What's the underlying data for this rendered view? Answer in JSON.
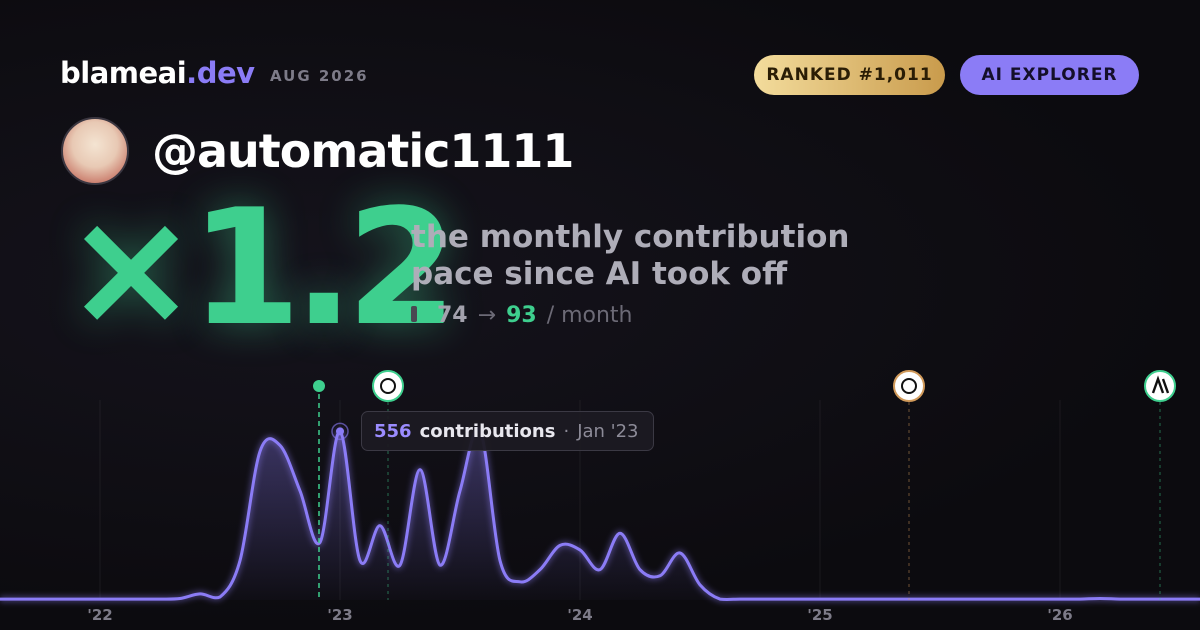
{
  "brand": {
    "name": "blameai",
    "tld": ".dev"
  },
  "date": "AUG 2026",
  "badges": [
    "RANKED #1,011",
    "AI EXPLORER"
  ],
  "handle": "@automatic1111",
  "pace": {
    "multiplier": "×1.2",
    "description": [
      "the monthly contribution",
      "pace since AI took off"
    ],
    "before": 74,
    "arrow": "→",
    "after": 93,
    "unit": "/ month"
  },
  "tooltip": {
    "label": "contributions",
    "separator": "·",
    "date": "Jan '23"
  },
  "chart_data": {
    "type": "area",
    "categories": [
      null,
      null,
      null,
      null,
      null,
      "'22",
      null,
      null,
      null,
      null,
      null,
      null,
      null,
      null,
      null,
      null,
      null,
      "'23",
      null,
      null,
      null,
      null,
      null,
      null,
      null,
      null,
      null,
      null,
      null,
      "'24",
      null,
      null,
      null,
      null,
      null,
      null,
      null,
      null,
      null,
      null,
      null,
      "'25",
      null,
      null,
      null,
      null,
      null,
      null,
      null,
      null,
      null,
      null,
      null,
      "'26",
      null,
      null,
      null,
      null,
      null,
      null,
      null
    ],
    "values": [
      3,
      3,
      3,
      3,
      3,
      3,
      3,
      3,
      3,
      5,
      20,
      10,
      130,
      490,
      510,
      360,
      190,
      556,
      130,
      245,
      115,
      430,
      115,
      360,
      560,
      130,
      60,
      100,
      180,
      165,
      100,
      220,
      100,
      80,
      155,
      50,
      3,
      3,
      3,
      3,
      3,
      3,
      3,
      3,
      3,
      3,
      3,
      3,
      3,
      3,
      3,
      3,
      3,
      3,
      3,
      5,
      3,
      3,
      3,
      3,
      3
    ],
    "color": "#8b7cf6",
    "ylim": [
      0,
      600
    ],
    "grid": true
  }
}
